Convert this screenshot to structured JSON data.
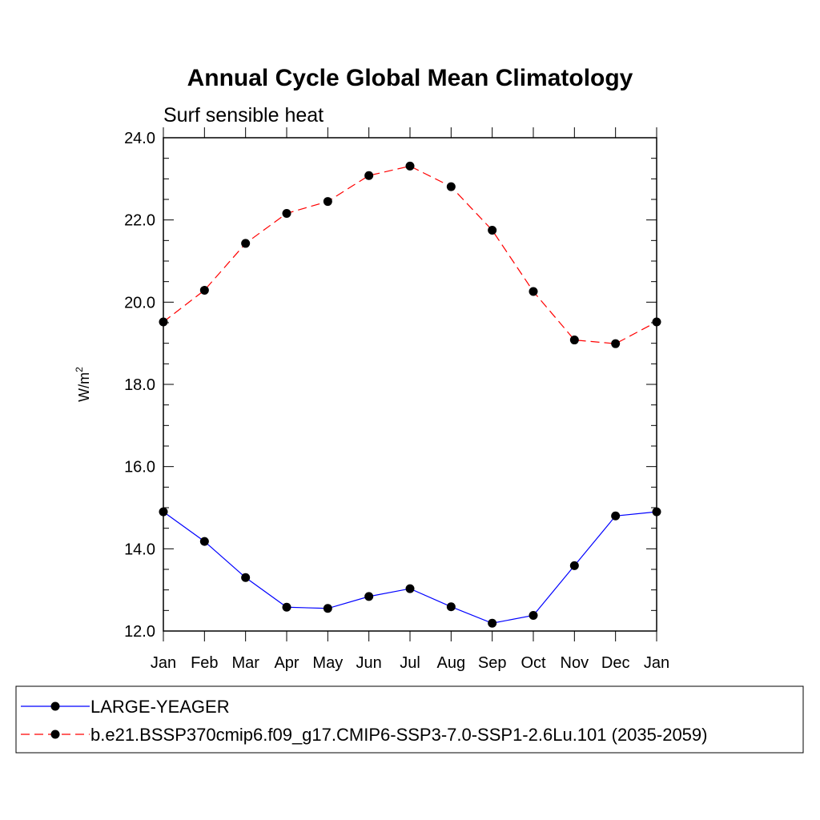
{
  "chart_data": {
    "type": "line",
    "title": "Annual Cycle Global Mean Climatology",
    "subtitle": "Surf sensible heat",
    "ylabel_main": "W/m",
    "ylabel_sup": "2",
    "xlabel": "",
    "categories": [
      "Jan",
      "Feb",
      "Mar",
      "Apr",
      "May",
      "Jun",
      "Jul",
      "Aug",
      "Sep",
      "Oct",
      "Nov",
      "Dec",
      "Jan"
    ],
    "ylim": [
      12.0,
      24.0
    ],
    "y_ticks": [
      "12.0",
      "14.0",
      "16.0",
      "18.0",
      "20.0",
      "22.0",
      "24.0"
    ],
    "grid": false,
    "legend_position": "bottom",
    "series": [
      {
        "name": "LARGE-YEAGER",
        "color": "#0000ff",
        "dash": "solid",
        "values": [
          14.9,
          14.18,
          13.3,
          12.58,
          12.55,
          12.84,
          13.03,
          12.59,
          12.19,
          12.38,
          13.59,
          14.8,
          14.9
        ]
      },
      {
        "name": "b.e21.BSSP370cmip6.f09_g17.CMIP6-SSP3-7.0-SSP1-2.6Lu.101 (2035-2059)",
        "color": "#ff0000",
        "dash": "dashed",
        "values": [
          19.52,
          20.29,
          21.43,
          22.16,
          22.45,
          23.08,
          23.31,
          22.81,
          21.75,
          20.26,
          19.08,
          18.99,
          19.52
        ]
      }
    ]
  }
}
